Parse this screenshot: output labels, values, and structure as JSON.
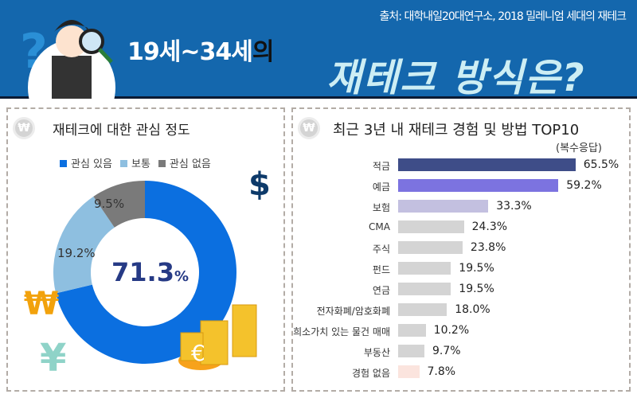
{
  "header": {
    "source": "출처: 대학내일20대연구소, 2018 밀레니엄 세대의 재테크",
    "title_main": "19세~34세",
    "title_suffix": "의",
    "title_big": "재테크 방식은?"
  },
  "icons": {
    "coin": "won-coin-icon",
    "dollar": "$",
    "won": "₩",
    "yen": "¥",
    "euro": "€"
  },
  "chart_data": [
    {
      "type": "pie",
      "title": "재테크에 대한 관심 정도",
      "donut": true,
      "categories": [
        "관심 있음",
        "보통",
        "관심 없음"
      ],
      "values": [
        71.3,
        19.2,
        9.5
      ],
      "labels": [
        "71.3",
        "19.2%",
        "9.5%"
      ],
      "center_unit": "%",
      "colors": [
        "#0b6fe0",
        "#8ebfe0",
        "#7a7a7a"
      ],
      "legend_placement": "top"
    },
    {
      "type": "bar",
      "orientation": "horizontal",
      "title": "최근 3년 내 재테크 경험 및 방법 TOP10",
      "subtitle": "(복수응답)",
      "categories": [
        "적금",
        "예금",
        "보험",
        "CMA",
        "주식",
        "펀드",
        "연금",
        "전자화폐/암호화폐",
        "희소가치 있는 물건 매매",
        "부동산",
        "경험 없음"
      ],
      "values": [
        65.5,
        59.2,
        33.3,
        24.3,
        23.8,
        19.5,
        19.5,
        18.0,
        10.2,
        9.7,
        7.8
      ],
      "value_labels": [
        "65.5%",
        "59.2%",
        "33.3%",
        "24.3%",
        "23.8%",
        "19.5%",
        "19.5%",
        "18.0%",
        "10.2%",
        "9.7%",
        "7.8%"
      ],
      "colors": [
        "#3e4d88",
        "#7c73e0",
        "#c3c0e0",
        "#d4d4d4",
        "#d4d4d4",
        "#d4d4d4",
        "#d4d4d4",
        "#d4d4d4",
        "#d4d4d4",
        "#d4d4d4",
        "#fbe4de"
      ]
    }
  ]
}
